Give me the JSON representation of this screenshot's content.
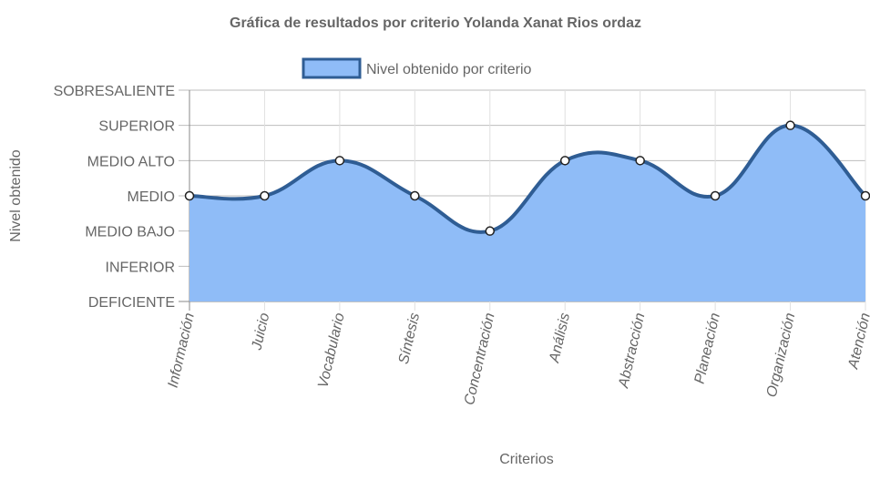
{
  "chart_data": {
    "type": "area",
    "title": "Gráfica de resultados por criterio Yolanda Xanat Rios ordaz",
    "xlabel": "Criterios",
    "ylabel": "Nivel obtenido",
    "categories": [
      "Información",
      "Juicio",
      "Vocabulario",
      "Síntesis",
      "Concentración",
      "Análisis",
      "Abstracción",
      "Planeación",
      "Organización",
      "Atención"
    ],
    "y_levels": [
      "DEFICIENTE",
      "INFERIOR",
      "MEDIO BAJO",
      "MEDIO",
      "MEDIO ALTO",
      "SUPERIOR",
      "SOBRESALIENTE"
    ],
    "ylim": [
      0,
      6
    ],
    "series": [
      {
        "name": "Nivel obtenido por criterio",
        "values": [
          3,
          3,
          4,
          3,
          2,
          4,
          4,
          3,
          5,
          3
        ],
        "fill_color": "#8fbcf7",
        "line_color": "#2f5d94"
      }
    ],
    "legend_position": "top",
    "grid": true
  }
}
